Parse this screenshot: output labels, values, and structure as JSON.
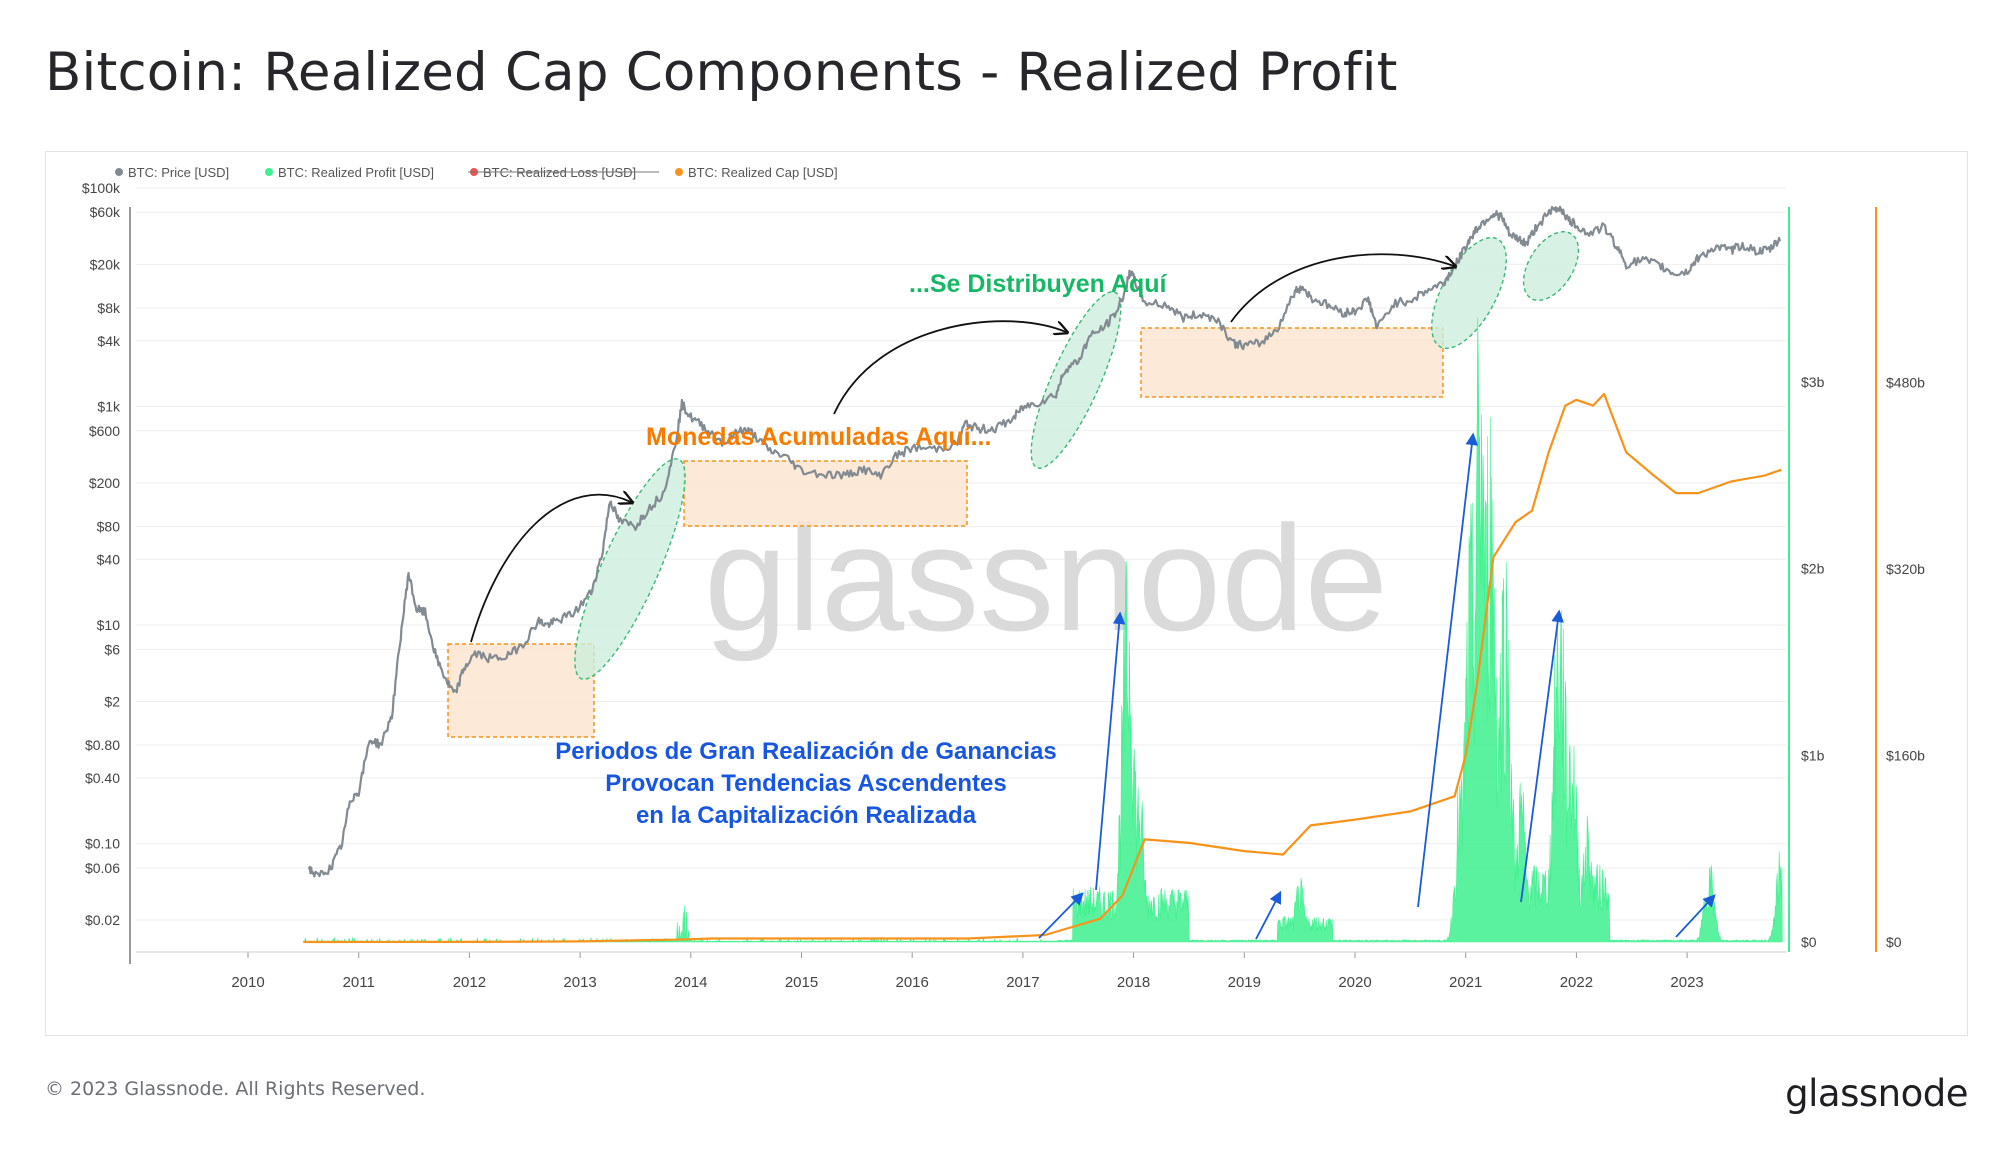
{
  "page": {
    "title": "Bitcoin: Realized Cap Components - Realized Profit",
    "copyright": "© 2023 Glassnode. All Rights Reserved.",
    "brand": "glassnode",
    "watermark": "glassnode"
  },
  "legend": [
    {
      "label": "BTC: Price [USD]",
      "color": "#828b92",
      "strike": false
    },
    {
      "label": "BTC: Realized Profit [USD]",
      "color": "#3ef08e",
      "strike": false
    },
    {
      "label": "BTC: Realized Loss [USD]",
      "color": "#ef5350",
      "strike": true
    },
    {
      "label": "BTC: Realized Cap [USD]",
      "color": "#f7931a",
      "strike": false
    }
  ],
  "annotations": {
    "distribute": "...Se Distribuyen Aquí",
    "accumulate": "Monedas Acumuladas Aquí...",
    "profit_line1": "Periodos de Gran Realización de Ganancias",
    "profit_line2": "Provocan Tendencias Ascendentes",
    "profit_line3": "en la Capitalización Realizada"
  },
  "colors": {
    "price": "#828b92",
    "profit": "#3ef08e",
    "cap": "#f7931a",
    "accum_fill": "#fde3cd",
    "accum_stroke": "#f7931a",
    "distrib_fill": "#cdeedd",
    "distrib_stroke": "#39b874",
    "arrow_blue": "#1a5bd8",
    "text_orange": "#f57c00",
    "text_green": "#16b866",
    "text_blue": "#1756e0"
  },
  "chart_data": {
    "type": "line",
    "x_ticks": [
      "2010",
      "2011",
      "2012",
      "2013",
      "2014",
      "2015",
      "2016",
      "2017",
      "2018",
      "2019",
      "2020",
      "2021",
      "2022",
      "2023"
    ],
    "price_axis": {
      "scale": "log",
      "ticks": [
        {
          "label": "$100k",
          "value": 100000
        },
        {
          "label": "$60k",
          "value": 60000
        },
        {
          "label": "$20k",
          "value": 20000
        },
        {
          "label": "$8k",
          "value": 8000
        },
        {
          "label": "$4k",
          "value": 4000
        },
        {
          "label": "$1k",
          "value": 1000
        },
        {
          "label": "$600",
          "value": 600
        },
        {
          "label": "$200",
          "value": 200
        },
        {
          "label": "$80",
          "value": 80
        },
        {
          "label": "$40",
          "value": 40
        },
        {
          "label": "$10",
          "value": 10
        },
        {
          "label": "$6",
          "value": 6
        },
        {
          "label": "$2",
          "value": 2
        },
        {
          "label": "$0.80",
          "value": 0.8
        },
        {
          "label": "$0.40",
          "value": 0.4
        },
        {
          "label": "$0.10",
          "value": 0.1
        },
        {
          "label": "$0.06",
          "value": 0.06
        },
        {
          "label": "$0.02",
          "value": 0.02
        }
      ]
    },
    "profit_axis": {
      "ticks": [
        {
          "label": "$3b",
          "value": 3
        },
        {
          "label": "$2b",
          "value": 2
        },
        {
          "label": "$1b",
          "value": 1
        },
        {
          "label": "$0",
          "value": 0
        }
      ],
      "unit": "billion USD"
    },
    "cap_axis": {
      "ticks": [
        {
          "label": "$480b",
          "value": 480
        },
        {
          "label": "$320b",
          "value": 320
        },
        {
          "label": "$160b",
          "value": 160
        },
        {
          "label": "$0",
          "value": 0
        }
      ],
      "unit": "billion USD"
    },
    "series": [
      {
        "name": "BTC: Price [USD]",
        "points": [
          [
            2010.55,
            0.06
          ],
          [
            2010.62,
            0.05
          ],
          [
            2010.75,
            0.06
          ],
          [
            2010.85,
            0.1
          ],
          [
            2010.92,
            0.25
          ],
          [
            2011.0,
            0.3
          ],
          [
            2011.1,
            0.9
          ],
          [
            2011.2,
            0.8
          ],
          [
            2011.3,
            1.5
          ],
          [
            2011.38,
            8
          ],
          [
            2011.45,
            30
          ],
          [
            2011.52,
            14
          ],
          [
            2011.6,
            13
          ],
          [
            2011.7,
            5
          ],
          [
            2011.8,
            3
          ],
          [
            2011.87,
            2.3
          ],
          [
            2011.95,
            4
          ],
          [
            2012.05,
            5.5
          ],
          [
            2012.2,
            4.9
          ],
          [
            2012.35,
            5.2
          ],
          [
            2012.5,
            7
          ],
          [
            2012.62,
            11
          ],
          [
            2012.7,
            10
          ],
          [
            2012.8,
            11
          ],
          [
            2012.95,
            13
          ],
          [
            2013.1,
            20
          ],
          [
            2013.2,
            45
          ],
          [
            2013.27,
            140
          ],
          [
            2013.35,
            90
          ],
          [
            2013.5,
            80
          ],
          [
            2013.6,
            110
          ],
          [
            2013.75,
            160
          ],
          [
            2013.85,
            400
          ],
          [
            2013.92,
            1050
          ],
          [
            2014.0,
            800
          ],
          [
            2014.12,
            650
          ],
          [
            2014.3,
            460
          ],
          [
            2014.45,
            620
          ],
          [
            2014.55,
            580
          ],
          [
            2014.7,
            400
          ],
          [
            2014.85,
            350
          ],
          [
            2015.0,
            260
          ],
          [
            2015.2,
            240
          ],
          [
            2015.4,
            235
          ],
          [
            2015.55,
            270
          ],
          [
            2015.7,
            230
          ],
          [
            2015.85,
            350
          ],
          [
            2016.0,
            420
          ],
          [
            2016.2,
            410
          ],
          [
            2016.4,
            450
          ],
          [
            2016.48,
            700
          ],
          [
            2016.6,
            620
          ],
          [
            2016.75,
            630
          ],
          [
            2016.9,
            760
          ],
          [
            2017.0,
            980
          ],
          [
            2017.15,
            1100
          ],
          [
            2017.3,
            1300
          ],
          [
            2017.38,
            2200
          ],
          [
            2017.5,
            2600
          ],
          [
            2017.6,
            4300
          ],
          [
            2017.75,
            5500
          ],
          [
            2017.85,
            7500
          ],
          [
            2017.93,
            12000
          ],
          [
            2017.97,
            17500
          ],
          [
            2018.02,
            13500
          ],
          [
            2018.1,
            9000
          ],
          [
            2018.3,
            8500
          ],
          [
            2018.45,
            6500
          ],
          [
            2018.6,
            7000
          ],
          [
            2018.75,
            6400
          ],
          [
            2018.9,
            3800
          ],
          [
            2019.0,
            3600
          ],
          [
            2019.15,
            3800
          ],
          [
            2019.3,
            5200
          ],
          [
            2019.45,
            11000
          ],
          [
            2019.52,
            12500
          ],
          [
            2019.6,
            10000
          ],
          [
            2019.75,
            8500
          ],
          [
            2019.9,
            7200
          ],
          [
            2020.0,
            7500
          ],
          [
            2020.12,
            9600
          ],
          [
            2020.2,
            5200
          ],
          [
            2020.35,
            8800
          ],
          [
            2020.5,
            9400
          ],
          [
            2020.65,
            11500
          ],
          [
            2020.8,
            13500
          ],
          [
            2020.9,
            19000
          ],
          [
            2021.0,
            29000
          ],
          [
            2021.08,
            40000
          ],
          [
            2021.15,
            48000
          ],
          [
            2021.25,
            58000
          ],
          [
            2021.32,
            55000
          ],
          [
            2021.4,
            37000
          ],
          [
            2021.5,
            33000
          ],
          [
            2021.55,
            31000
          ],
          [
            2021.65,
            46000
          ],
          [
            2021.78,
            62000
          ],
          [
            2021.86,
            66000
          ],
          [
            2021.93,
            50000
          ],
          [
            2022.0,
            46000
          ],
          [
            2022.1,
            38000
          ],
          [
            2022.25,
            44000
          ],
          [
            2022.35,
            31000
          ],
          [
            2022.45,
            20000
          ],
          [
            2022.6,
            22000
          ],
          [
            2022.75,
            19500
          ],
          [
            2022.88,
            16500
          ],
          [
            2023.0,
            17000
          ],
          [
            2023.1,
            23000
          ],
          [
            2023.25,
            28500
          ],
          [
            2023.4,
            27000
          ],
          [
            2023.5,
            30000
          ],
          [
            2023.65,
            26000
          ],
          [
            2023.75,
            27500
          ],
          [
            2023.85,
            35000
          ]
        ]
      },
      {
        "name": "BTC: Realized Profit [USD]",
        "unit": "billion USD",
        "peaks": [
          [
            2013.93,
            0.1
          ],
          [
            2017.6,
            0.15
          ],
          [
            2017.95,
            1.8
          ],
          [
            2018.05,
            0.8
          ],
          [
            2019.5,
            0.3
          ],
          [
            2020.95,
            0.8
          ],
          [
            2021.05,
            2.0
          ],
          [
            2021.13,
            3.1
          ],
          [
            2021.22,
            2.6
          ],
          [
            2021.35,
            1.9
          ],
          [
            2021.5,
            0.8
          ],
          [
            2021.85,
            1.8
          ],
          [
            2021.95,
            1.1
          ],
          [
            2022.1,
            0.6
          ],
          [
            2023.2,
            0.4
          ],
          [
            2023.85,
            0.45
          ]
        ]
      },
      {
        "name": "BTC: Realized Cap [USD]",
        "unit": "billion USD",
        "points": [
          [
            2010.5,
            0
          ],
          [
            2012.0,
            0.1
          ],
          [
            2013.0,
            0.5
          ],
          [
            2013.85,
            2
          ],
          [
            2014.2,
            3
          ],
          [
            2016.5,
            3
          ],
          [
            2017.2,
            6
          ],
          [
            2017.7,
            20
          ],
          [
            2017.9,
            40
          ],
          [
            2018.1,
            88
          ],
          [
            2018.5,
            85
          ],
          [
            2019.0,
            78
          ],
          [
            2019.35,
            75
          ],
          [
            2019.6,
            100
          ],
          [
            2020.0,
            105
          ],
          [
            2020.5,
            112
          ],
          [
            2020.9,
            125
          ],
          [
            2021.0,
            160
          ],
          [
            2021.1,
            220
          ],
          [
            2021.25,
            330
          ],
          [
            2021.45,
            360
          ],
          [
            2021.6,
            370
          ],
          [
            2021.75,
            420
          ],
          [
            2021.9,
            460
          ],
          [
            2022.0,
            465
          ],
          [
            2022.15,
            460
          ],
          [
            2022.25,
            470
          ],
          [
            2022.45,
            420
          ],
          [
            2022.7,
            400
          ],
          [
            2022.9,
            385
          ],
          [
            2023.1,
            385
          ],
          [
            2023.4,
            395
          ],
          [
            2023.7,
            400
          ],
          [
            2023.85,
            405
          ]
        ]
      }
    ]
  }
}
